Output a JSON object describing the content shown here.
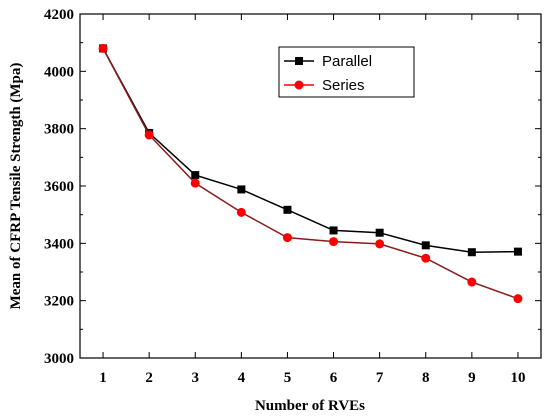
{
  "chart_data": {
    "type": "line",
    "xlabel": "Number of RVEs",
    "ylabel": "Mean of CFRP Tensile Strength (Mpa)",
    "x": [
      1,
      2,
      3,
      4,
      5,
      6,
      7,
      8,
      9,
      10
    ],
    "xlim": [
      0.5,
      10.5
    ],
    "ylim": [
      3000,
      4200
    ],
    "yticks": [
      3000,
      3200,
      3400,
      3600,
      3800,
      4000,
      4200
    ],
    "xticks": [
      1,
      2,
      3,
      4,
      5,
      6,
      7,
      8,
      9,
      10
    ],
    "grid": false,
    "legend_position": "top-right",
    "series": [
      {
        "name": "Parallel",
        "color": "#000000",
        "marker": "square",
        "values": [
          4080,
          3785,
          3638,
          3588,
          3517,
          3445,
          3437,
          3393,
          3369,
          3371
        ]
      },
      {
        "name": "Series",
        "color": "#ff0000",
        "line_color": "#8b1a1a",
        "marker": "circle",
        "values": [
          4080,
          3778,
          3610,
          3508,
          3420,
          3406,
          3398,
          3348,
          3265,
          3207
        ]
      }
    ]
  }
}
